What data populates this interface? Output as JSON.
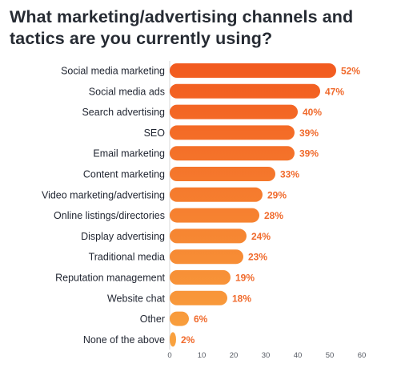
{
  "chart_data": {
    "type": "bar",
    "orientation": "horizontal",
    "title": "What marketing/advertising channels and tactics are you currently using?",
    "categories": [
      "Social media marketing",
      "Social media ads",
      "Search advertising",
      "SEO",
      "Email marketing",
      "Content marketing",
      "Video marketing/advertising",
      "Online listings/directories",
      "Display advertising",
      "Traditional media",
      "Reputation management",
      "Website chat",
      "Other",
      "None of the above"
    ],
    "values": [
      52,
      47,
      40,
      39,
      39,
      33,
      29,
      28,
      24,
      23,
      19,
      18,
      6,
      2
    ],
    "value_labels": [
      "52%",
      "47%",
      "40%",
      "39%",
      "39%",
      "33%",
      "29%",
      "28%",
      "24%",
      "23%",
      "19%",
      "18%",
      "6%",
      "2%"
    ],
    "x_ticks": [
      0,
      10,
      20,
      30,
      40,
      50,
      60
    ],
    "xlim": [
      0,
      60
    ],
    "grid": false,
    "colors": {
      "bar_top": "#f25a1f",
      "bar_bottom": "#f9a33f",
      "value_label": "#f06a2c",
      "title": "#262b33"
    }
  }
}
